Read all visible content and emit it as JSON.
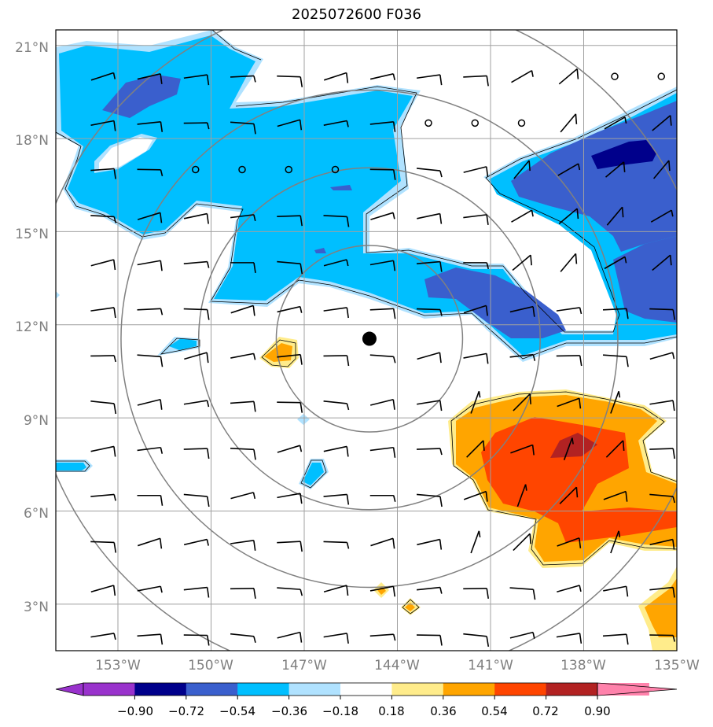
{
  "title": "2025072600 F036",
  "lat_labels": [
    "21°N",
    "18°N",
    "15°N",
    "12°N",
    "9°N",
    "6°N",
    "3°N"
  ],
  "lon_labels": [
    "153°W",
    "150°W",
    "147°W",
    "144°W",
    "141°W",
    "138°W",
    "135°W"
  ],
  "map_extent": {
    "lon_min": -155,
    "lon_max": -135,
    "lat_min": 1.5,
    "lat_max": 21.5
  },
  "storm_center": {
    "lon": -144.9,
    "lat": 11.55
  },
  "range_rings_deg": [
    3,
    5.5,
    8,
    11
  ],
  "colorbar": {
    "levels": [
      "−0.90",
      "−0.72",
      "−0.54",
      "−0.36",
      "−0.18",
      "0.18",
      "0.36",
      "0.54",
      "0.72",
      "0.90"
    ],
    "colors": [
      "#9932cc",
      "#00008b",
      "#3a5fcd",
      "#00bfff",
      "#b0e2ff",
      "#ffffff",
      "#ffec8b",
      "#ffa500",
      "#ff4500",
      "#b22222",
      "#ff82ab"
    ]
  }
}
